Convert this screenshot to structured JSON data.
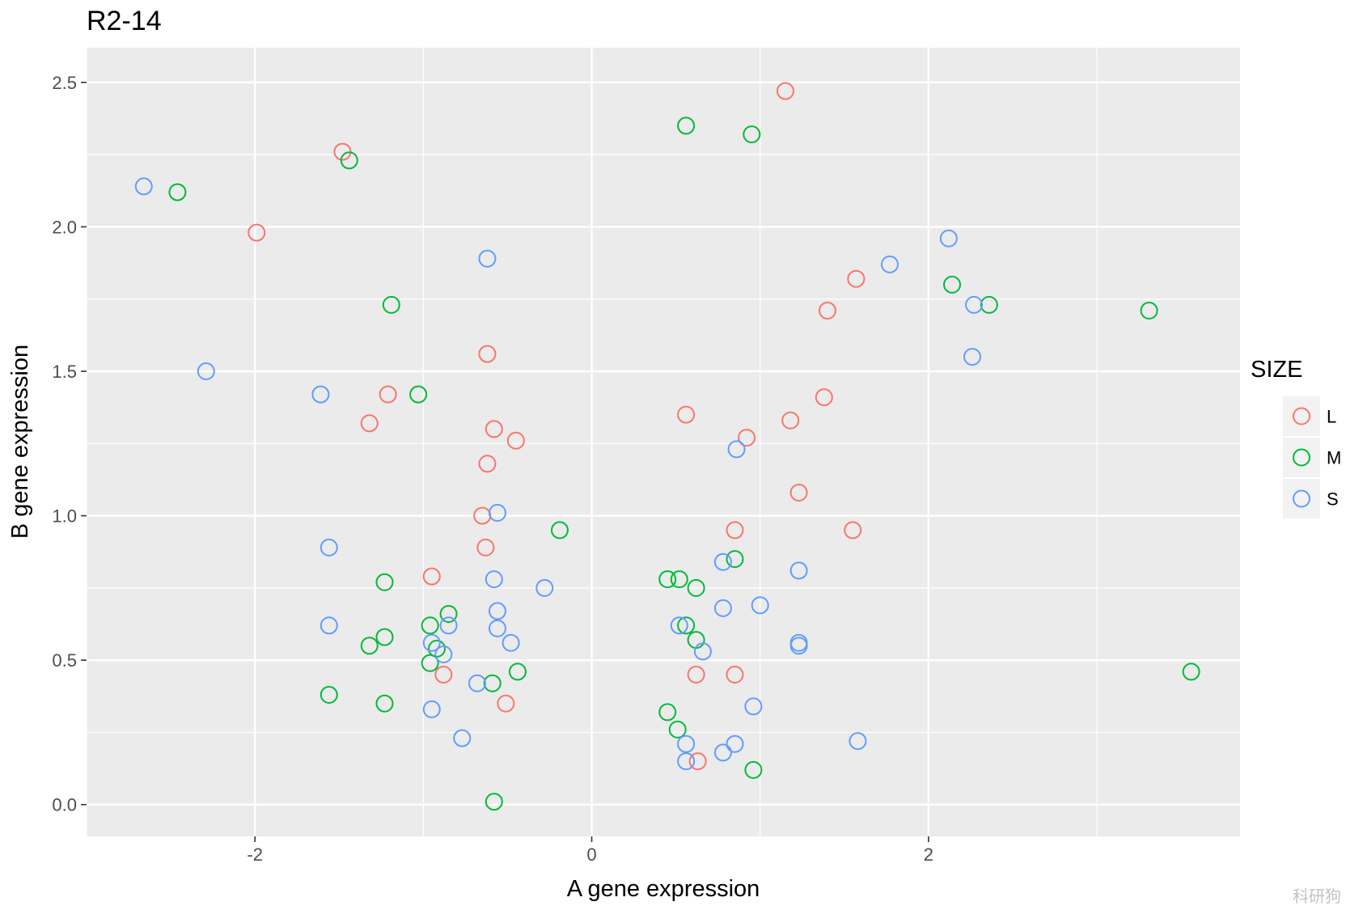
{
  "chart_data": {
    "type": "scatter",
    "title": "R2-14",
    "xlabel": "A gene expression",
    "ylabel": "B gene expression",
    "xlim": [
      -3.0,
      3.85
    ],
    "ylim": [
      -0.11,
      2.62
    ],
    "x_ticks": [
      -2,
      0,
      2
    ],
    "x_tick_labels": [
      "-2",
      "0",
      "2"
    ],
    "y_ticks": [
      0.0,
      0.5,
      1.0,
      1.5,
      2.0,
      2.5
    ],
    "y_tick_labels": [
      "0.0",
      "0.5",
      "1.0",
      "1.5",
      "2.0",
      "2.5"
    ],
    "grid": true,
    "background": "#ebebeb",
    "legend": {
      "title": "SIZE",
      "position": "right"
    },
    "series": [
      {
        "name": "L",
        "color": "#f8766d",
        "points": [
          [
            1.15,
            2.47
          ],
          [
            -1.48,
            2.26
          ],
          [
            -1.99,
            1.98
          ],
          [
            1.57,
            1.82
          ],
          [
            1.4,
            1.71
          ],
          [
            -0.62,
            1.56
          ],
          [
            -1.21,
            1.42
          ],
          [
            -1.32,
            1.32
          ],
          [
            0.56,
            1.35
          ],
          [
            1.38,
            1.41
          ],
          [
            1.18,
            1.33
          ],
          [
            -0.58,
            1.3
          ],
          [
            -0.45,
            1.26
          ],
          [
            0.92,
            1.27
          ],
          [
            -0.62,
            1.18
          ],
          [
            1.23,
            1.08
          ],
          [
            -0.65,
            1.0
          ],
          [
            0.85,
            0.95
          ],
          [
            1.55,
            0.95
          ],
          [
            -0.63,
            0.89
          ],
          [
            -0.95,
            0.79
          ],
          [
            -0.88,
            0.45
          ],
          [
            0.62,
            0.45
          ],
          [
            0.85,
            0.45
          ],
          [
            -0.51,
            0.35
          ],
          [
            0.63,
            0.15
          ]
        ]
      },
      {
        "name": "M",
        "color": "#00ba38",
        "points": [
          [
            0.56,
            2.35
          ],
          [
            0.95,
            2.32
          ],
          [
            -1.44,
            2.23
          ],
          [
            -2.46,
            2.12
          ],
          [
            2.14,
            1.8
          ],
          [
            2.36,
            1.73
          ],
          [
            3.31,
            1.71
          ],
          [
            -1.19,
            1.73
          ],
          [
            -1.03,
            1.42
          ],
          [
            -0.19,
            0.95
          ],
          [
            0.85,
            0.85
          ],
          [
            0.45,
            0.78
          ],
          [
            0.52,
            0.78
          ],
          [
            0.62,
            0.75
          ],
          [
            -1.23,
            0.77
          ],
          [
            -0.85,
            0.66
          ],
          [
            -0.96,
            0.62
          ],
          [
            0.56,
            0.62
          ],
          [
            -1.23,
            0.58
          ],
          [
            0.62,
            0.57
          ],
          [
            -1.32,
            0.55
          ],
          [
            -0.92,
            0.54
          ],
          [
            -0.96,
            0.49
          ],
          [
            -0.44,
            0.46
          ],
          [
            3.56,
            0.46
          ],
          [
            -0.59,
            0.42
          ],
          [
            -1.56,
            0.38
          ],
          [
            -1.23,
            0.35
          ],
          [
            0.45,
            0.32
          ],
          [
            0.51,
            0.26
          ],
          [
            0.96,
            0.12
          ],
          [
            -0.58,
            0.01
          ]
        ]
      },
      {
        "name": "S",
        "color": "#619cff",
        "points": [
          [
            -2.66,
            2.14
          ],
          [
            2.12,
            1.96
          ],
          [
            1.77,
            1.87
          ],
          [
            -0.62,
            1.89
          ],
          [
            2.27,
            1.73
          ],
          [
            2.26,
            1.55
          ],
          [
            -2.29,
            1.5
          ],
          [
            -1.61,
            1.42
          ],
          [
            0.86,
            1.23
          ],
          [
            -0.56,
            1.01
          ],
          [
            -1.56,
            0.89
          ],
          [
            0.78,
            0.84
          ],
          [
            1.23,
            0.81
          ],
          [
            -0.58,
            0.78
          ],
          [
            -0.28,
            0.75
          ],
          [
            1.0,
            0.69
          ],
          [
            0.78,
            0.68
          ],
          [
            -0.56,
            0.67
          ],
          [
            -1.56,
            0.62
          ],
          [
            -0.85,
            0.62
          ],
          [
            0.52,
            0.62
          ],
          [
            -0.56,
            0.61
          ],
          [
            -0.48,
            0.56
          ],
          [
            -0.95,
            0.56
          ],
          [
            1.23,
            0.56
          ],
          [
            1.23,
            0.55
          ],
          [
            -0.88,
            0.52
          ],
          [
            0.66,
            0.53
          ],
          [
            -0.68,
            0.42
          ],
          [
            -0.95,
            0.33
          ],
          [
            0.96,
            0.34
          ],
          [
            -0.77,
            0.23
          ],
          [
            0.56,
            0.21
          ],
          [
            0.85,
            0.21
          ],
          [
            1.58,
            0.22
          ],
          [
            0.78,
            0.18
          ],
          [
            0.56,
            0.15
          ]
        ]
      }
    ]
  },
  "watermark": "科研狗"
}
